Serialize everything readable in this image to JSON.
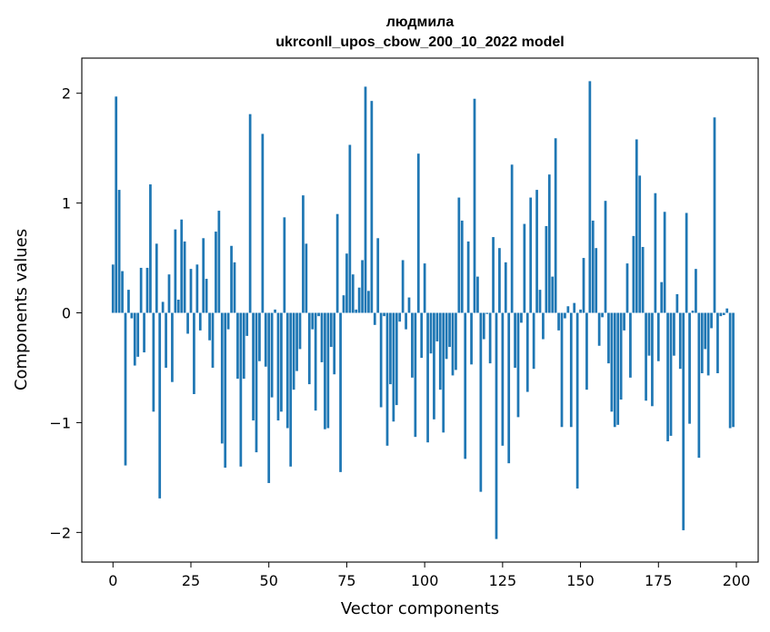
{
  "chart_data": {
    "type": "bar",
    "title_line1": "людмила",
    "title_line2": "ukrconll_upos_cbow_200_10_2022 model",
    "xlabel": "Vector components",
    "ylabel": "Components values",
    "xlim": [
      -10,
      207
    ],
    "ylim": [
      -2.27,
      2.32
    ],
    "grid": false,
    "x_ticks": [
      0,
      25,
      50,
      75,
      100,
      125,
      150,
      175,
      200
    ],
    "x_tick_labels": [
      "0",
      "25",
      "50",
      "75",
      "100",
      "125",
      "150",
      "175",
      "200"
    ],
    "y_ticks": [
      2,
      1,
      0,
      -1,
      -2
    ],
    "y_tick_labels": [
      "2",
      "1",
      "0",
      "−1",
      "−2"
    ],
    "color": "#1f77b4",
    "values": [
      0.44,
      1.97,
      1.12,
      0.38,
      -1.39,
      0.21,
      -0.05,
      -0.48,
      -0.4,
      0.41,
      -0.36,
      0.41,
      1.17,
      -0.9,
      0.63,
      -1.69,
      0.1,
      -0.5,
      0.35,
      -0.63,
      0.76,
      0.12,
      0.85,
      0.65,
      -0.19,
      0.4,
      -0.74,
      0.44,
      -0.16,
      0.68,
      0.31,
      -0.25,
      -0.5,
      0.74,
      0.93,
      -1.19,
      -1.41,
      -0.15,
      0.61,
      0.46,
      -0.6,
      -1.4,
      -0.6,
      -0.21,
      1.81,
      -0.98,
      -1.27,
      -0.44,
      1.63,
      -0.49,
      -1.55,
      -0.77,
      0.03,
      -0.98,
      -0.9,
      0.87,
      -1.05,
      -1.4,
      -0.7,
      -0.53,
      -0.33,
      1.07,
      0.63,
      -0.65,
      -0.15,
      -0.89,
      -0.03,
      -0.45,
      -1.06,
      -1.05,
      -0.31,
      -0.56,
      0.9,
      -1.45,
      0.16,
      0.54,
      1.53,
      0.35,
      0.03,
      0.23,
      0.48,
      2.06,
      0.2,
      1.93,
      -0.11,
      0.68,
      -0.86,
      -0.03,
      -1.21,
      -0.65,
      -0.99,
      -0.84,
      -0.08,
      0.48,
      -0.15,
      0.14,
      -0.59,
      -1.13,
      1.45,
      -0.41,
      0.45,
      -1.18,
      -0.37,
      -0.97,
      -0.26,
      -0.7,
      -1.09,
      -0.42,
      -0.31,
      -0.57,
      -0.52,
      1.05,
      0.84,
      -1.33,
      0.65,
      -0.47,
      1.95,
      0.33,
      -1.63,
      -0.24,
      -0.01,
      -0.46,
      0.69,
      -2.06,
      0.59,
      -1.21,
      0.46,
      -1.37,
      1.35,
      -0.5,
      -0.95,
      -0.09,
      0.81,
      -0.72,
      1.05,
      -0.51,
      1.12,
      0.21,
      -0.24,
      0.79,
      1.26,
      0.33,
      1.59,
      -0.16,
      -1.04,
      -0.05,
      0.06,
      -1.04,
      0.09,
      -1.6,
      0.03,
      0.5,
      -0.7,
      2.11,
      0.84,
      0.59,
      -0.3,
      -0.04,
      1.02,
      -0.46,
      -0.9,
      -1.04,
      -1.02,
      -0.79,
      -0.16,
      0.45,
      -0.59,
      0.7,
      1.58,
      1.25,
      0.6,
      -0.8,
      -0.39,
      -0.85,
      1.09,
      -0.44,
      0.28,
      0.92,
      -1.17,
      -1.12,
      -0.39,
      0.17,
      -0.51,
      -1.98,
      0.91,
      -1.01,
      0.02,
      0.4,
      -1.32,
      -0.55,
      -0.33,
      -0.57,
      -0.14,
      1.78,
      -0.55,
      -0.03,
      -0.02,
      0.04,
      -1.05,
      -1.04
    ]
  }
}
